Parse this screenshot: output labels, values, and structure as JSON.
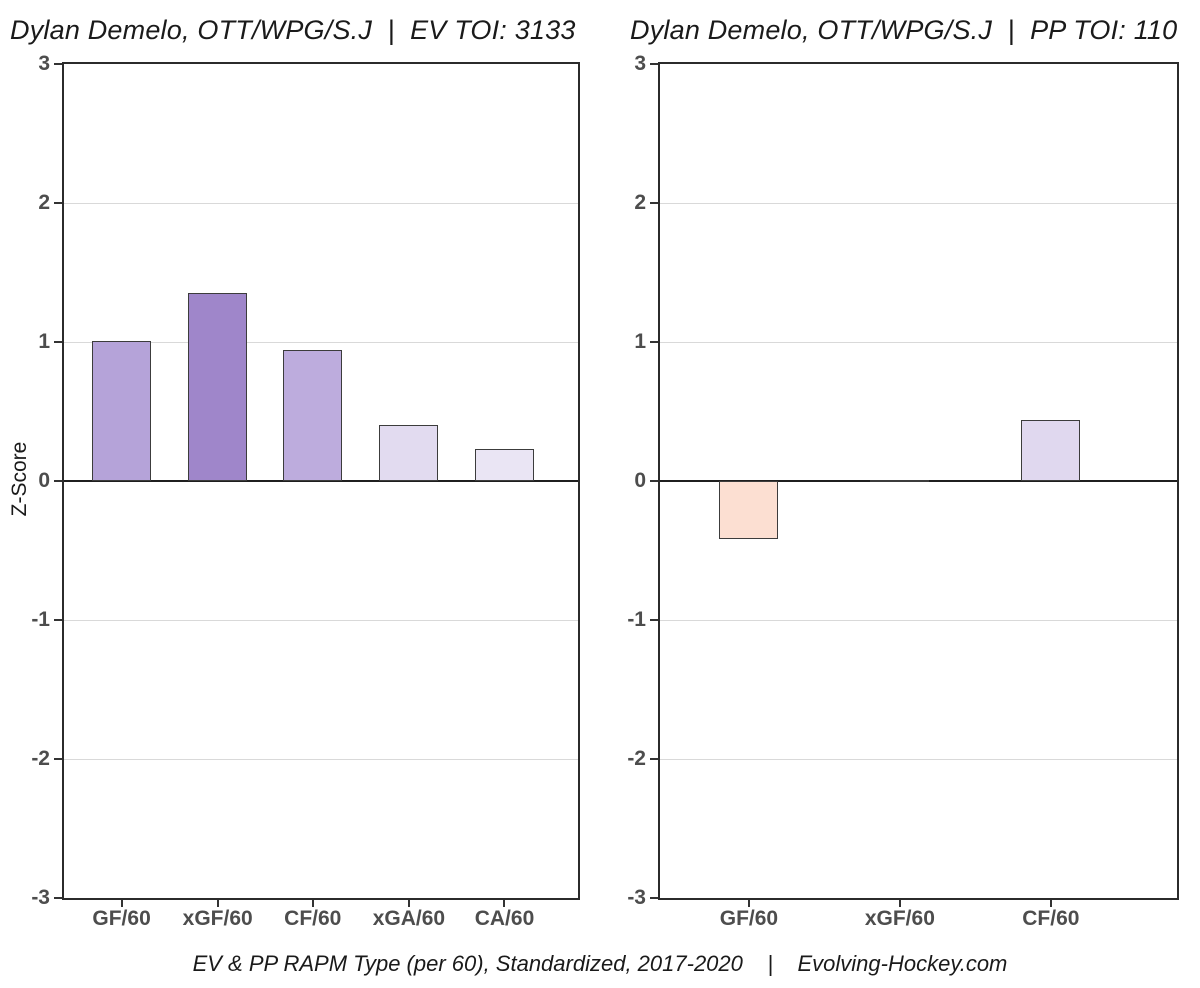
{
  "caption": "EV & PP RAPM Type (per 60), Standardized, 2017-2020    |    Evolving-Hockey.com",
  "y_axis": {
    "label": "Z-Score",
    "tick_values": [
      3,
      2,
      1,
      0,
      -1,
      -2,
      -3
    ],
    "tick_labels": [
      "3",
      "2",
      "1",
      "0",
      "-1",
      "-2",
      "-3"
    ]
  },
  "colors": {
    "bar_stroke": "#3c3c3c",
    "gridline": "#d9d9d9",
    "zero_line": "#1f1f1f",
    "panel_border": "#2b2b2b",
    "tick_text": "#4d4d4d",
    "title_text": "#1a1a1a"
  },
  "chart_data": [
    {
      "type": "bar",
      "title": "Dylan Demelo, OTT/WPG/S.J  |  EV TOI: 3133",
      "categories": [
        "GF/60",
        "xGF/60",
        "CF/60",
        "xGA/60",
        "CA/60"
      ],
      "values": [
        1.01,
        1.35,
        0.94,
        0.4,
        0.23
      ],
      "bar_colors": [
        "#b5a3d9",
        "#9f86ca",
        "#bdacdd",
        "#e2dbf0",
        "#eae5f4"
      ],
      "xlabel": "",
      "ylabel": "Z-Score",
      "ylim": [
        -3,
        3
      ],
      "grid": "major-horizontal",
      "legend": "none"
    },
    {
      "type": "bar",
      "title": "Dylan Demelo, OTT/WPG/S.J  |  PP TOI: 110",
      "categories": [
        "GF/60",
        "xGF/60",
        "CF/60"
      ],
      "values": [
        -0.42,
        0.01,
        0.44
      ],
      "bar_colors": [
        "#fcdfd2",
        "#fdfcfa",
        "#e0d8ef"
      ],
      "xlabel": "",
      "ylabel": "Z-Score",
      "ylim": [
        -3,
        3
      ],
      "grid": "major-horizontal",
      "legend": "none"
    }
  ]
}
